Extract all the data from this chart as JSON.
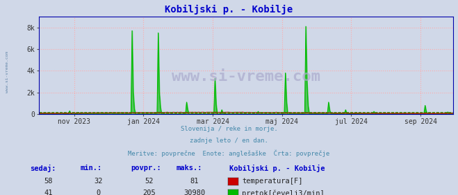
{
  "title": "Kobiljski p. - Kobilje",
  "title_color": "#0000cc",
  "bg_color": "#d0d8e8",
  "plot_bg_color": "#d0d8e8",
  "subtitle_lines": [
    "Slovenija / reke in morje.",
    "zadnje leto / en dan.",
    "Meritve: povprečne  Enote: anglešaške  Črta: povprečje"
  ],
  "subtitle_color": "#4488aa",
  "ylim": [
    0,
    9000
  ],
  "yticks": [
    0,
    2000,
    4000,
    6000,
    8000
  ],
  "ytick_labels": [
    "0",
    "2k",
    "4k",
    "6k",
    "8k"
  ],
  "grid_color": "#ffaaaa",
  "x_tick_labels": [
    "nov 2023",
    "jan 2024",
    "mar 2024",
    "maj 2024",
    "jul 2024",
    "sep 2024"
  ],
  "temp_color": "#cc0000",
  "flow_color": "#00bb00",
  "flow_avg": 205,
  "temp_avg_scaled": 102,
  "watermark": "www.si-vreme.com",
  "table_header": [
    "sedaj:",
    "min.:",
    "povpr.:",
    "maks.:",
    "Kobiljski p. - Kobilje"
  ],
  "table_rows": [
    [
      "58",
      "32",
      "52",
      "81",
      "temperatura[F]",
      "#cc0000"
    ],
    [
      "41",
      "0",
      "205",
      "30980",
      "pretok[čevelj3/min]",
      "#00bb00"
    ]
  ]
}
